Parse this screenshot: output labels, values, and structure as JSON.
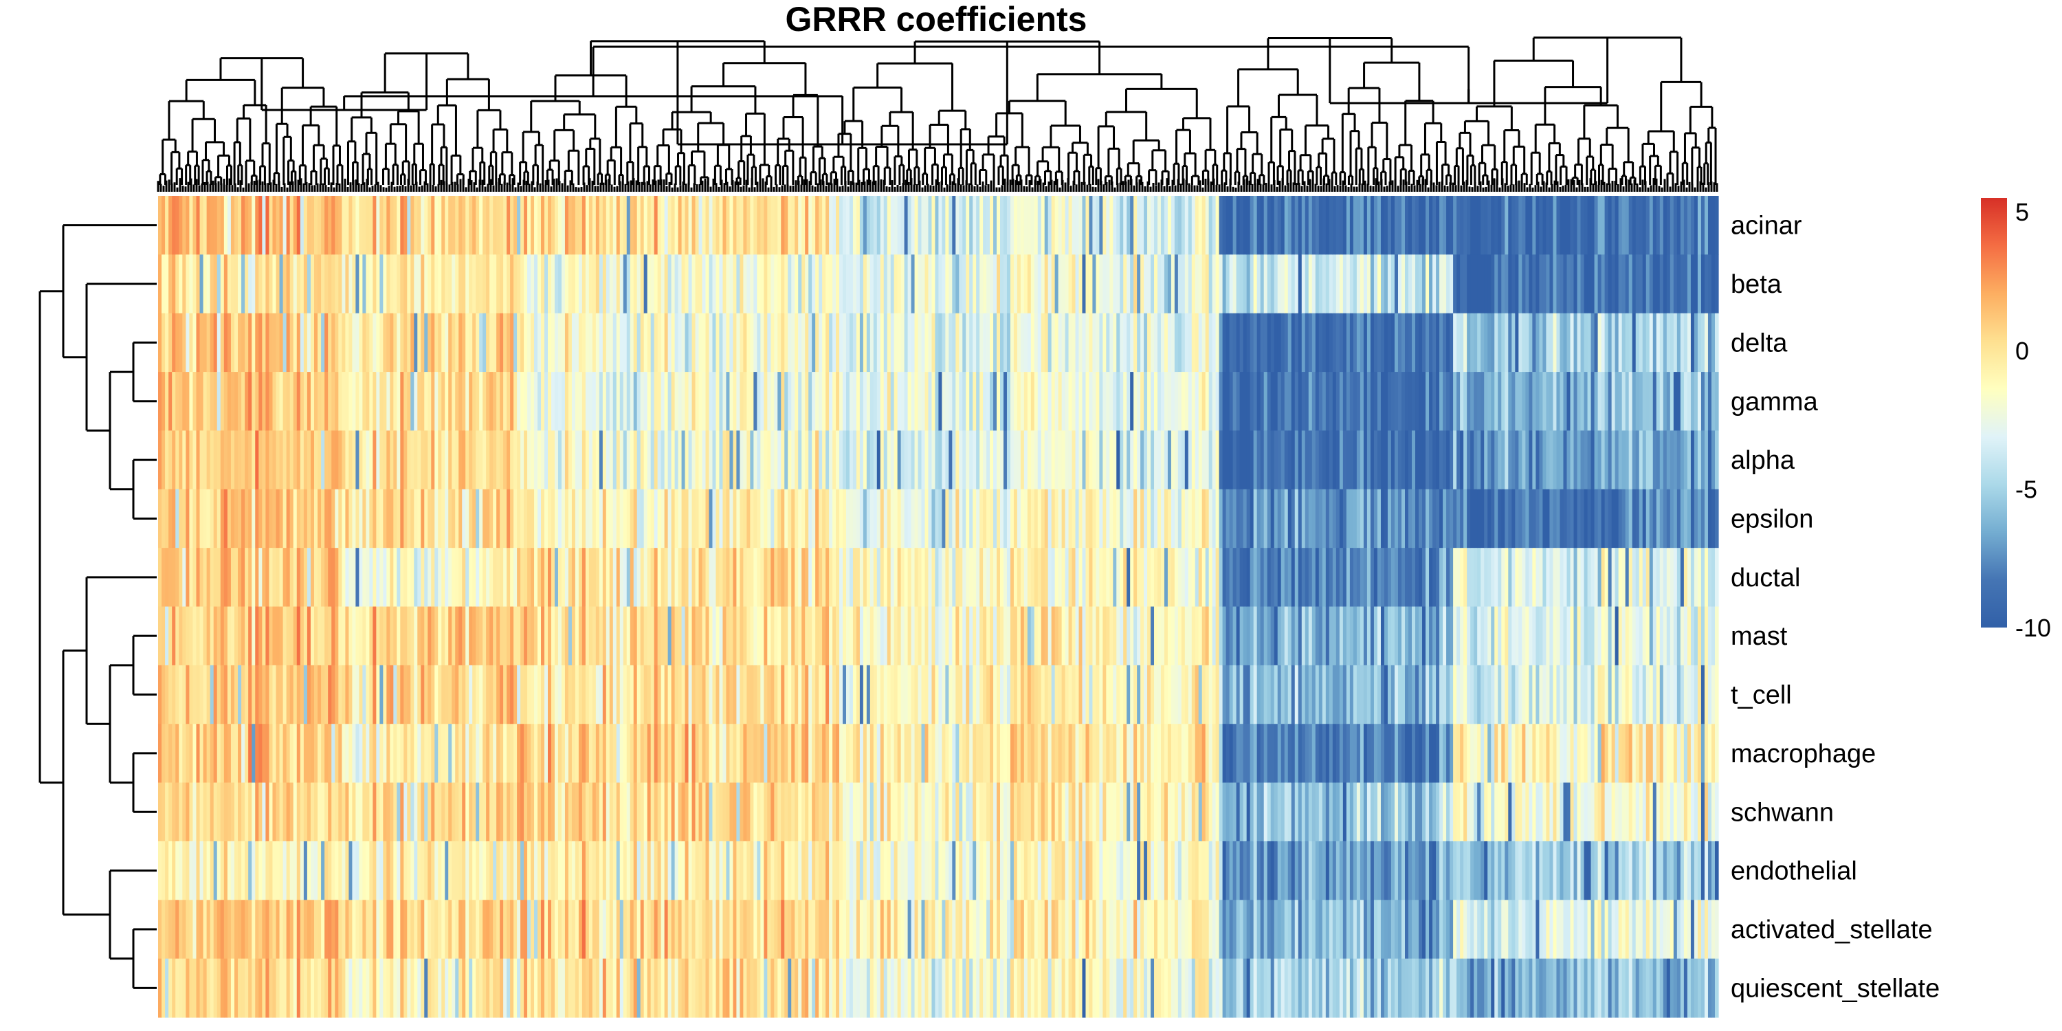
{
  "chart_data": {
    "type": "heatmap",
    "title": "GRRR coefficients",
    "rows": [
      "acinar",
      "beta",
      "delta",
      "gamma",
      "alpha",
      "epsilon",
      "ductal",
      "mast",
      "t_cell",
      "macrophage",
      "schwann",
      "endothelial",
      "activated_stellate",
      "quiescent_stellate"
    ],
    "color_scale": {
      "min": -10,
      "max": 5.5,
      "ticks": [
        5,
        0,
        -5,
        -10
      ],
      "colors": [
        "#3160a8",
        "#4575b4",
        "#74add1",
        "#abd9e9",
        "#e0f3f8",
        "#ffffbf",
        "#fee090",
        "#fdae61",
        "#f46d43",
        "#d73027"
      ]
    },
    "column_clusters": [
      {
        "cluster": 1,
        "approx_columns_pct": 12,
        "means": {
          "acinar": 1.5,
          "beta": 0.0,
          "delta": 1.0,
          "gamma": 1.0,
          "alpha": 1.0,
          "epsilon": 1.0,
          "ductal": 1.0,
          "mast": 1.0,
          "t_cell": 1.0,
          "macrophage": 1.0,
          "schwann": 0.5,
          "endothelial": -1.0,
          "activated_stellate": 1.0,
          "quiescent_stellate": 0.5
        }
      },
      {
        "cluster": 2,
        "approx_columns_pct": 11,
        "means": {
          "acinar": 0.5,
          "beta": -0.5,
          "delta": 0.0,
          "gamma": 0.0,
          "alpha": 0.0,
          "epsilon": 0.0,
          "ductal": -2.0,
          "mast": 0.5,
          "t_cell": 0.5,
          "macrophage": -1.0,
          "schwann": 0.0,
          "endothelial": -1.0,
          "activated_stellate": 0.0,
          "quiescent_stellate": -1.0
        }
      },
      {
        "cluster": 3,
        "approx_columns_pct": 20,
        "means": {
          "acinar": 0.0,
          "beta": -2.0,
          "delta": -2.0,
          "gamma": -2.0,
          "alpha": -2.0,
          "epsilon": -1.0,
          "ductal": 0.0,
          "mast": 0.0,
          "t_cell": 0.0,
          "macrophage": 0.5,
          "schwann": 0.5,
          "endothelial": -0.5,
          "activated_stellate": 0.5,
          "quiescent_stellate": 0.0
        }
      },
      {
        "cluster": 4,
        "approx_columns_pct": 25,
        "means": {
          "acinar": -3.0,
          "beta": -2.5,
          "delta": -3.0,
          "gamma": -2.5,
          "alpha": -3.0,
          "epsilon": -2.0,
          "ductal": -1.5,
          "mast": -1.0,
          "t_cell": -1.0,
          "macrophage": -0.5,
          "schwann": -1.0,
          "endothelial": -1.5,
          "activated_stellate": -1.0,
          "quiescent_stellate": -2.0
        }
      },
      {
        "cluster": 5,
        "approx_columns_pct": 15,
        "means": {
          "acinar": -9.0,
          "beta": -4.0,
          "delta": -9.0,
          "gamma": -9.0,
          "alpha": -9.0,
          "epsilon": -7.0,
          "ductal": -8.0,
          "mast": -6.0,
          "t_cell": -6.0,
          "macrophage": -8.0,
          "schwann": -5.0,
          "endothelial": -7.0,
          "activated_stellate": -6.0,
          "quiescent_stellate": -5.0
        }
      },
      {
        "cluster": 6,
        "approx_columns_pct": 17,
        "means": {
          "acinar": -9.0,
          "beta": -9.0,
          "delta": -5.0,
          "gamma": -6.0,
          "alpha": -7.0,
          "epsilon": -8.0,
          "ductal": -3.0,
          "mast": -3.0,
          "t_cell": -3.0,
          "macrophage": -1.0,
          "schwann": -2.0,
          "endothelial": -5.0,
          "activated_stellate": -3.0,
          "quiescent_stellate": -6.0
        }
      }
    ],
    "row_dendrogram": true,
    "column_dendrogram": true,
    "legend_placement": "right"
  }
}
